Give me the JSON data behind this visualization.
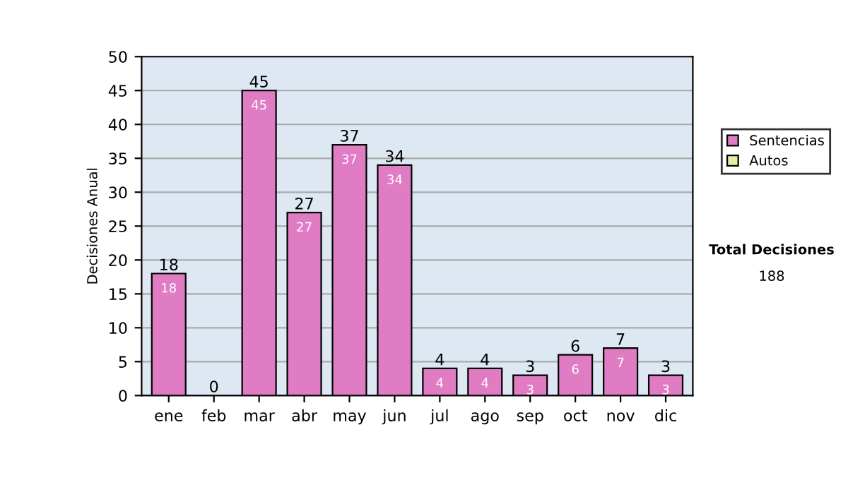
{
  "chart_data": {
    "type": "bar",
    "ylabel": "Decisiones Anual",
    "categories": [
      "ene",
      "feb",
      "mar",
      "abr",
      "may",
      "jun",
      "jul",
      "ago",
      "sep",
      "oct",
      "nov",
      "dic"
    ],
    "series": [
      {
        "name": "Sentencias",
        "color": "#e07cc4",
        "values": [
          18,
          0,
          45,
          27,
          37,
          34,
          4,
          4,
          3,
          6,
          7,
          3
        ],
        "value_labels": [
          "18",
          null,
          "45",
          "27",
          "37",
          "34",
          "4",
          "4",
          "3",
          "6",
          "7",
          "3"
        ]
      },
      {
        "name": "Autos",
        "color": "#e2f0a4",
        "values": [
          0,
          0,
          0,
          0,
          0,
          0,
          0,
          0,
          0,
          0,
          0,
          0
        ]
      }
    ],
    "stacked": true,
    "totals": [
      "18",
      "0",
      "45",
      "27",
      "37",
      "34",
      "4",
      "4",
      "3",
      "6",
      "7",
      "3"
    ],
    "ylim": [
      0,
      50
    ],
    "yticks": [
      0,
      5,
      10,
      15,
      20,
      25,
      30,
      35,
      40,
      45,
      50
    ],
    "grid": "y",
    "legend": "right",
    "annotations": [
      "Total Decisiones",
      "188"
    ]
  }
}
